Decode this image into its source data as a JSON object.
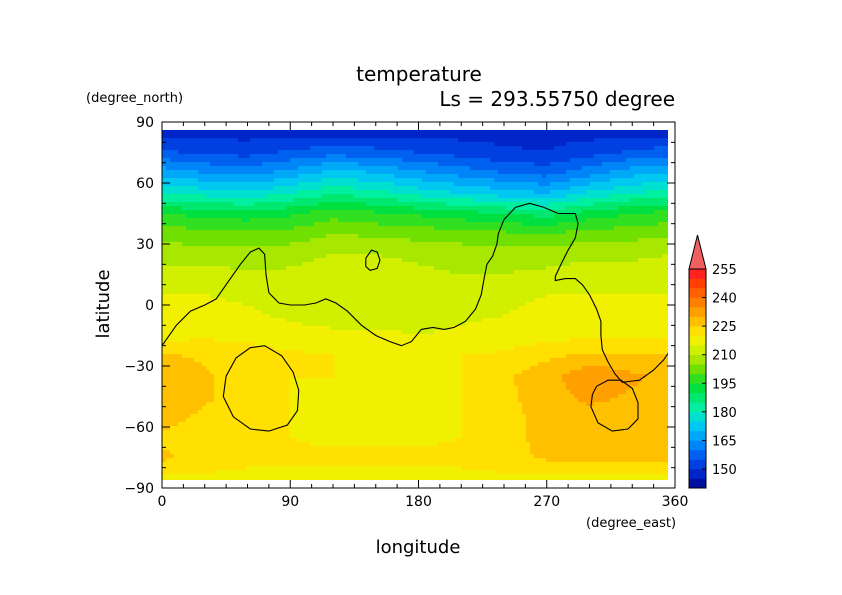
{
  "chart_data": {
    "type": "heatmap",
    "title": "temperature",
    "subtitle": "Ls = 293.55750 degree",
    "xlabel": "longitude",
    "ylabel": "latitude",
    "x_unit": "(degree_east)",
    "y_unit": "(degree_north)",
    "xlim": [
      0,
      360
    ],
    "ylim": [
      -90,
      90
    ],
    "x_ticks": [
      "0",
      "90",
      "180",
      "270",
      "360"
    ],
    "y_ticks": [
      "90",
      "60",
      "30",
      "0",
      "−30",
      "−60",
      "−90"
    ],
    "colorbar": {
      "levels": [
        140,
        145,
        150,
        155,
        160,
        165,
        170,
        175,
        180,
        185,
        190,
        195,
        200,
        205,
        210,
        215,
        220,
        225,
        230,
        235,
        240,
        245,
        250,
        255,
        260
      ],
      "tick_labels": [
        "150",
        "165",
        "180",
        "195",
        "210",
        "225",
        "240",
        "255"
      ],
      "colors": [
        "#0010a0",
        "#0025c8",
        "#0040e0",
        "#0060f0",
        "#0085f8",
        "#00a8fa",
        "#00c8f0",
        "#00e0d0",
        "#00f0a0",
        "#00e870",
        "#00e040",
        "#30e020",
        "#70e000",
        "#a8e800",
        "#d0f000",
        "#f0f000",
        "#ffe000",
        "#ffc000",
        "#ffa000",
        "#ff8000",
        "#ff6000",
        "#ff4000",
        "#ff2020",
        "#f06060"
      ]
    },
    "rows": [
      {
        "lat": 85,
        "values": [
          148,
          148,
          148,
          148,
          148,
          148,
          148,
          148,
          148,
          148,
          148,
          148,
          148
        ]
      },
      {
        "lat": 75,
        "values": [
          156,
          154,
          153,
          156,
          158,
          157,
          155,
          153,
          151,
          150,
          153,
          156,
          158
        ]
      },
      {
        "lat": 65,
        "values": [
          168,
          165,
          163,
          167,
          172,
          170,
          166,
          163,
          160,
          158,
          163,
          168,
          170
        ]
      },
      {
        "lat": 55,
        "values": [
          180,
          178,
          176,
          180,
          184,
          182,
          178,
          175,
          172,
          170,
          176,
          180,
          182
        ]
      },
      {
        "lat": 45,
        "values": [
          195,
          193,
          192,
          194,
          198,
          196,
          194,
          192,
          190,
          188,
          192,
          195,
          197
        ]
      },
      {
        "lat": 35,
        "values": [
          203,
          202,
          201,
          202,
          205,
          204,
          203,
          202,
          201,
          200,
          202,
          203,
          204
        ]
      },
      {
        "lat": 25,
        "values": [
          208,
          207,
          207,
          208,
          210,
          210,
          209,
          208,
          208,
          208,
          209,
          209,
          210
        ]
      },
      {
        "lat": 15,
        "values": [
          212,
          212,
          211,
          211,
          213,
          212,
          211,
          210,
          210,
          211,
          212,
          212,
          213
        ]
      },
      {
        "lat": 5,
        "values": [
          215,
          215,
          214,
          213,
          212,
          212,
          212,
          213,
          214,
          215,
          215,
          215,
          215
        ]
      },
      {
        "lat": -5,
        "values": [
          216,
          217,
          216,
          214,
          213,
          213,
          213,
          214,
          215,
          216,
          217,
          217,
          217
        ]
      },
      {
        "lat": -15,
        "values": [
          218,
          219,
          219,
          217,
          216,
          216,
          215,
          216,
          217,
          218,
          219,
          219,
          219
        ]
      },
      {
        "lat": -25,
        "values": [
          226,
          224,
          222,
          221,
          220,
          219,
          219,
          220,
          221,
          224,
          226,
          226,
          226
        ]
      },
      {
        "lat": -35,
        "values": [
          228,
          226,
          222,
          220,
          220,
          219,
          219,
          220,
          224,
          228,
          234,
          231,
          228
        ]
      },
      {
        "lat": -45,
        "values": [
          228,
          226,
          222,
          220,
          219,
          219,
          219,
          220,
          224,
          227,
          232,
          229,
          228
        ]
      },
      {
        "lat": -55,
        "values": [
          227,
          224,
          221,
          220,
          219,
          219,
          219,
          220,
          224,
          226,
          227,
          227,
          227
        ]
      },
      {
        "lat": -65,
        "values": [
          224,
          222,
          220,
          220,
          219,
          219,
          219,
          220,
          224,
          226,
          226,
          226,
          226
        ]
      },
      {
        "lat": -75,
        "values": [
          226,
          223,
          221,
          221,
          221,
          221,
          221,
          221,
          223,
          226,
          226,
          226,
          226
        ]
      },
      {
        "lat": -85,
        "values": [
          219,
          219,
          219,
          219,
          219,
          219,
          219,
          219,
          219,
          219,
          219,
          219,
          219
        ]
      }
    ],
    "row_lons": [
      0,
      30,
      60,
      90,
      120,
      150,
      180,
      210,
      240,
      270,
      300,
      330,
      360
    ],
    "contours": [
      [
        [
          0,
          -20
        ],
        [
          10,
          -10
        ],
        [
          20,
          -3
        ],
        [
          30,
          0
        ],
        [
          38,
          3
        ],
        [
          45,
          10
        ],
        [
          55,
          20
        ],
        [
          62,
          26
        ],
        [
          68,
          28
        ],
        [
          72,
          25
        ],
        [
          73,
          15
        ],
        [
          75,
          6
        ],
        [
          82,
          1
        ],
        [
          90,
          0
        ],
        [
          100,
          0
        ],
        [
          108,
          1
        ],
        [
          115,
          3
        ],
        [
          122,
          1
        ],
        [
          130,
          -3
        ],
        [
          140,
          -10
        ],
        [
          150,
          -15
        ],
        [
          160,
          -18
        ],
        [
          168,
          -20
        ],
        [
          175,
          -18
        ],
        [
          182,
          -12
        ],
        [
          190,
          -11
        ],
        [
          198,
          -12
        ],
        [
          205,
          -11
        ],
        [
          213,
          -8
        ],
        [
          220,
          -2
        ],
        [
          224,
          5
        ],
        [
          226,
          13
        ],
        [
          228,
          20
        ],
        [
          232,
          24
        ],
        [
          235,
          30
        ],
        [
          236,
          35
        ],
        [
          240,
          42
        ],
        [
          248,
          48
        ],
        [
          258,
          50
        ],
        [
          268,
          48
        ],
        [
          278,
          45
        ],
        [
          290,
          45
        ],
        [
          292,
          40
        ],
        [
          290,
          33
        ],
        [
          285,
          27
        ],
        [
          280,
          20
        ],
        [
          276,
          14
        ],
        [
          276,
          12
        ],
        [
          283,
          13
        ],
        [
          290,
          13
        ],
        [
          295,
          10
        ],
        [
          300,
          5
        ],
        [
          305,
          -2
        ],
        [
          308,
          -8
        ],
        [
          308,
          -15
        ],
        [
          309,
          -22
        ],
        [
          313,
          -28
        ],
        [
          318,
          -34
        ],
        [
          323,
          -38
        ],
        [
          335,
          -37
        ],
        [
          345,
          -32
        ],
        [
          352,
          -27
        ],
        [
          357,
          -22
        ],
        [
          360,
          -21
        ]
      ],
      [
        [
          143,
          23
        ],
        [
          147,
          27
        ],
        [
          151,
          26
        ],
        [
          153,
          22
        ],
        [
          151,
          18
        ],
        [
          146,
          17
        ],
        [
          143,
          19
        ],
        [
          143,
          23
        ]
      ],
      [
        [
          45,
          -35
        ],
        [
          52,
          -26
        ],
        [
          62,
          -21
        ],
        [
          72,
          -20
        ],
        [
          84,
          -25
        ],
        [
          92,
          -33
        ],
        [
          96,
          -42
        ],
        [
          95,
          -52
        ],
        [
          88,
          -59
        ],
        [
          75,
          -62
        ],
        [
          62,
          -61
        ],
        [
          50,
          -55
        ],
        [
          43,
          -45
        ],
        [
          45,
          -35
        ]
      ],
      [
        [
          305,
          -40
        ],
        [
          313,
          -37
        ],
        [
          322,
          -37
        ],
        [
          330,
          -41
        ],
        [
          334,
          -48
        ],
        [
          334,
          -56
        ],
        [
          327,
          -61
        ],
        [
          316,
          -62
        ],
        [
          306,
          -58
        ],
        [
          301,
          -50
        ],
        [
          302,
          -44
        ],
        [
          305,
          -40
        ]
      ]
    ]
  }
}
